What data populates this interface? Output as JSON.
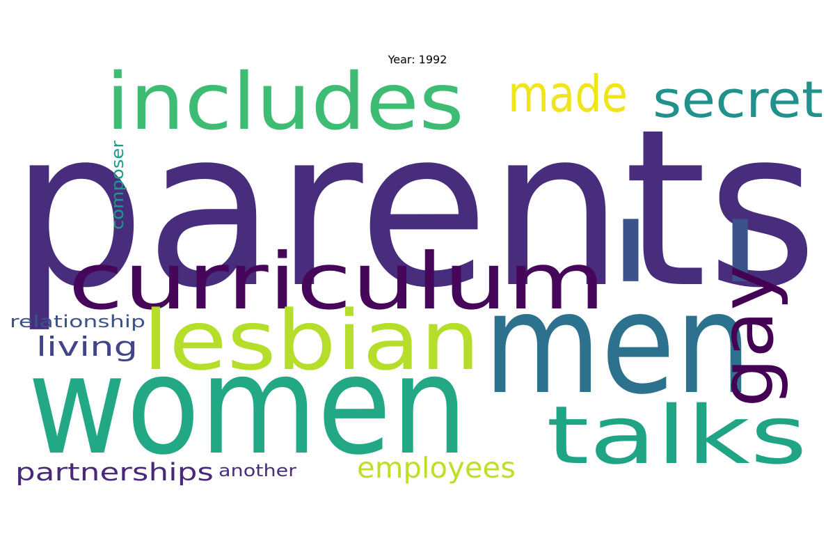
{
  "title": "Year: 1992",
  "words": [
    {
      "text": "parents",
      "color": "#472d7b"
    },
    {
      "text": "women",
      "color": "#22a884"
    },
    {
      "text": "men",
      "color": "#2c728e"
    },
    {
      "text": "includes",
      "color": "#3fbc73"
    },
    {
      "text": "curriculum",
      "color": "#46075a"
    },
    {
      "text": "lesbian",
      "color": "#b5de2b"
    },
    {
      "text": "talks",
      "color": "#20a486"
    },
    {
      "text": "' '",
      "color": "#3b528b"
    },
    {
      "text": "gay",
      "color": "#440154"
    },
    {
      "text": "secret",
      "color": "#21918c"
    },
    {
      "text": "made",
      "color": "#f0e41c"
    },
    {
      "text": "employees",
      "color": "#bddf26"
    },
    {
      "text": "partnerships",
      "color": "#482878"
    },
    {
      "text": "living",
      "color": "#414487"
    },
    {
      "text": "relationship",
      "color": "#3b528b"
    },
    {
      "text": "another",
      "color": "#482f7a"
    },
    {
      "text": "composer",
      "color": "#1f9a8a"
    }
  ]
}
